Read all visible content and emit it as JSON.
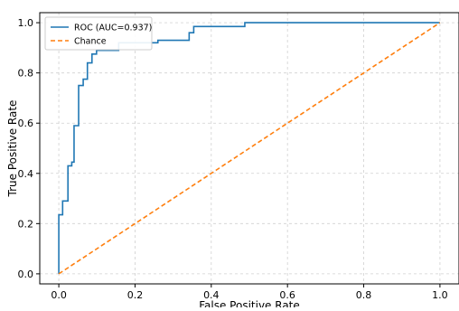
{
  "chart_data": {
    "type": "line",
    "title": "",
    "xlabel": "False Positive Rate",
    "ylabel": "True Positive Rate",
    "xlim": [
      -0.05,
      1.05
    ],
    "ylim": [
      -0.04,
      1.04
    ],
    "grid": true,
    "legend_position": "top-left",
    "x_ticks": [
      {
        "value": 0.0,
        "label": "0.0"
      },
      {
        "value": 0.2,
        "label": "0.2"
      },
      {
        "value": 0.4,
        "label": "0.4"
      },
      {
        "value": 0.6,
        "label": "0.6"
      },
      {
        "value": 0.8,
        "label": "0.8"
      },
      {
        "value": 1.0,
        "label": "1.0"
      }
    ],
    "y_ticks": [
      {
        "value": 0.0,
        "label": "0.0"
      },
      {
        "value": 0.2,
        "label": "0.2"
      },
      {
        "value": 0.4,
        "label": "0.4"
      },
      {
        "value": 0.6,
        "label": "0.6"
      },
      {
        "value": 0.8,
        "label": "0.8"
      },
      {
        "value": 1.0,
        "label": "1.0"
      }
    ],
    "series": [
      {
        "name": "ROC (AUC=0.937)",
        "color": "#1f77b4",
        "line_style": "solid",
        "x": [
          0.0,
          0.0,
          0.01,
          0.01,
          0.024,
          0.024,
          0.034,
          0.034,
          0.04,
          0.04,
          0.052,
          0.052,
          0.064,
          0.064,
          0.075,
          0.075,
          0.087,
          0.087,
          0.099,
          0.099,
          0.11,
          0.11,
          0.157,
          0.157,
          0.26,
          0.26,
          0.342,
          0.342,
          0.354,
          0.354,
          0.488,
          0.488,
          1.0
        ],
        "y": [
          0.0,
          0.235,
          0.235,
          0.29,
          0.29,
          0.43,
          0.43,
          0.445,
          0.445,
          0.59,
          0.59,
          0.75,
          0.75,
          0.775,
          0.775,
          0.84,
          0.84,
          0.875,
          0.875,
          0.89,
          0.89,
          0.89,
          0.89,
          0.92,
          0.92,
          0.93,
          0.93,
          0.96,
          0.96,
          0.985,
          0.985,
          1.0,
          1.0
        ]
      },
      {
        "name": "Chance",
        "color": "#ff7f0e",
        "line_style": "dashed",
        "x": [
          0.0,
          1.0
        ],
        "y": [
          0.0,
          1.0
        ]
      }
    ]
  }
}
